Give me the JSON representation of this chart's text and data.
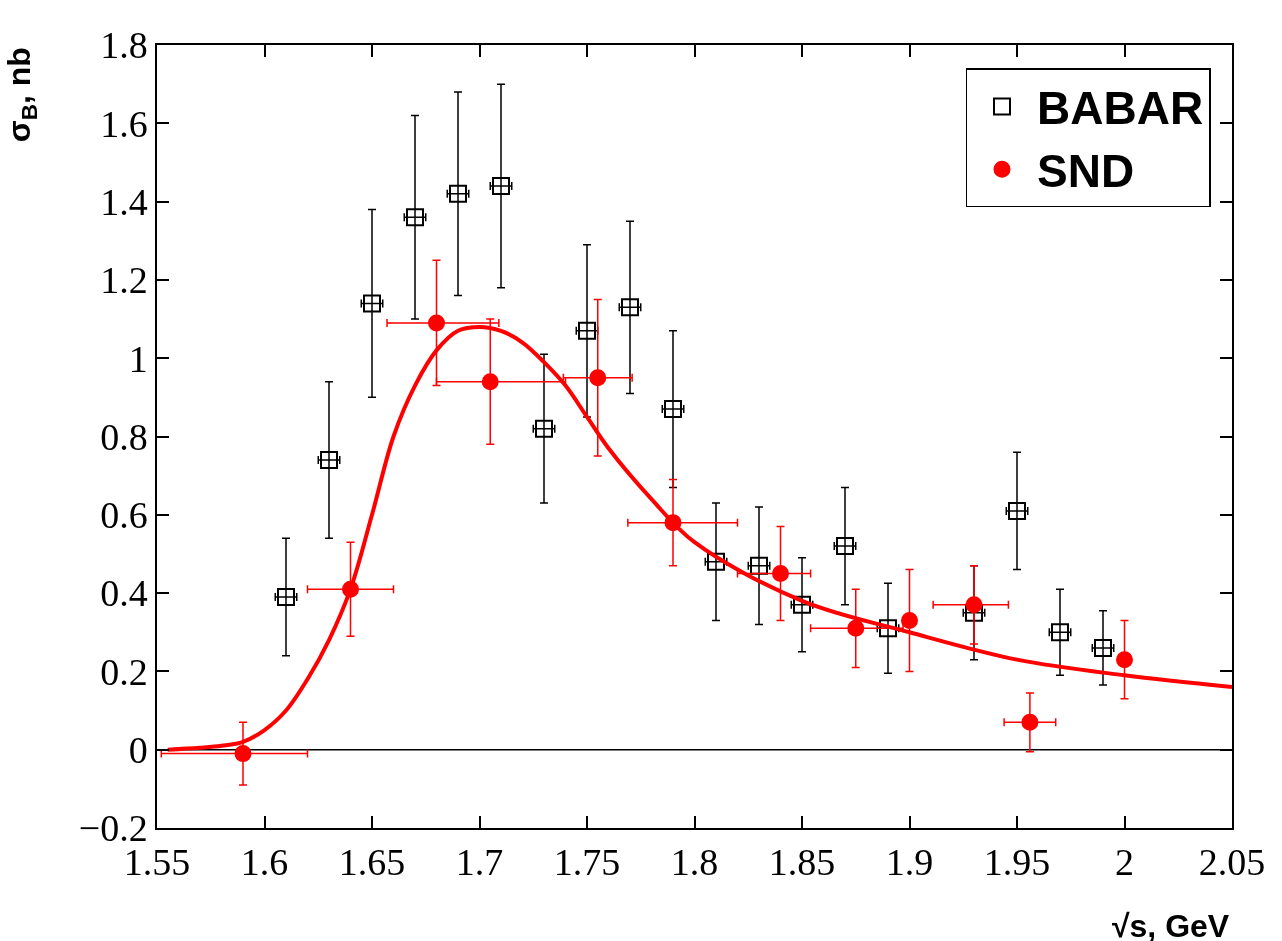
{
  "chart_data": {
    "type": "scatter",
    "xlabel": "√s, GeV",
    "ylabel": "σ$_{B}$, nb",
    "xlim": [
      1.55,
      2.05
    ],
    "xticks": [
      1.55,
      1.6,
      1.65,
      1.7,
      1.75,
      1.8,
      1.85,
      1.9,
      1.95,
      2,
      2.05
    ],
    "ylim": [
      -0.2,
      1.8
    ],
    "yticks": [
      -0.2,
      0,
      0.2,
      0.4,
      0.6,
      0.8,
      1,
      1.2,
      1.4,
      1.6,
      1.8
    ],
    "grid": false,
    "legend": "top right",
    "ref_lines": [
      {
        "axis": "y",
        "value": 0,
        "color": "#000000",
        "line_style": "solid"
      }
    ],
    "series": [
      {
        "name": "BABAR",
        "marker": "square",
        "color": "#000000",
        "x": [
          1.61,
          1.63,
          1.65,
          1.67,
          1.69,
          1.71,
          1.73,
          1.75,
          1.77,
          1.79,
          1.81,
          1.83,
          1.85,
          1.87,
          1.89,
          1.93,
          1.95,
          1.97,
          1.99
        ],
        "values": [
          0.39,
          0.74,
          1.14,
          1.36,
          1.42,
          1.44,
          0.82,
          1.07,
          1.13,
          0.87,
          0.48,
          0.47,
          0.37,
          0.52,
          0.31,
          0.35,
          0.61,
          0.3,
          0.26
        ],
        "errors": [
          0.15,
          0.2,
          0.24,
          0.26,
          0.26,
          0.26,
          0.19,
          0.22,
          0.22,
          0.2,
          0.15,
          0.15,
          0.12,
          0.15,
          0.115,
          0.12,
          0.15,
          0.11,
          0.095
        ],
        "xerrors": [
          0.005,
          0.005,
          0.005,
          0.005,
          0.005,
          0.005,
          0.005,
          0.005,
          0.005,
          0.005,
          0.005,
          0.005,
          0.005,
          0.005,
          0.005,
          0.005,
          0.005,
          0.005,
          0.005
        ]
      },
      {
        "name": "SND",
        "marker": "circle",
        "color": "#ff0000",
        "x": [
          1.59,
          1.64,
          1.68,
          1.705,
          1.755,
          1.79,
          1.84,
          1.875,
          1.9,
          1.93,
          1.956,
          2.0
        ],
        "values": [
          -0.01,
          0.41,
          1.09,
          0.94,
          0.95,
          0.58,
          0.45,
          0.31,
          0.33,
          0.37,
          0.07,
          0.23
        ],
        "errors": [
          0.08,
          0.12,
          0.16,
          0.16,
          0.2,
          0.11,
          0.12,
          0.1,
          0.13,
          0.1,
          0.075,
          0.1
        ],
        "xerrors": [
          [
            1.552,
            1.62
          ],
          0.02,
          [
            1.657,
            1.709
          ],
          [
            1.68,
            1.74
          ],
          [
            1.739,
            1.771
          ],
          [
            1.769,
            1.82
          ],
          [
            1.82,
            1.854
          ],
          [
            1.854,
            1.897
          ],
          null,
          [
            1.911,
            1.946
          ],
          0.012,
          null
        ]
      },
      {
        "type": "line",
        "marker": "none",
        "line_style": "solid",
        "color": "#ff0000",
        "x": [
          1.555,
          1.57,
          1.58,
          1.59,
          1.6,
          1.61,
          1.62,
          1.63,
          1.64,
          1.65,
          1.66,
          1.67,
          1.68,
          1.69,
          1.7,
          1.71,
          1.72,
          1.73,
          1.74,
          1.75,
          1.76,
          1.78,
          1.8,
          1.85,
          1.9,
          1.95,
          2.0,
          2.05
        ],
        "values": [
          0.0,
          0.005,
          0.01,
          0.02,
          0.05,
          0.1,
          0.18,
          0.28,
          0.41,
          0.6,
          0.8,
          0.93,
          1.02,
          1.07,
          1.08,
          1.07,
          1.04,
          0.99,
          0.93,
          0.85,
          0.77,
          0.64,
          0.53,
          0.38,
          0.3,
          0.23,
          0.19,
          0.16
        ]
      }
    ]
  }
}
